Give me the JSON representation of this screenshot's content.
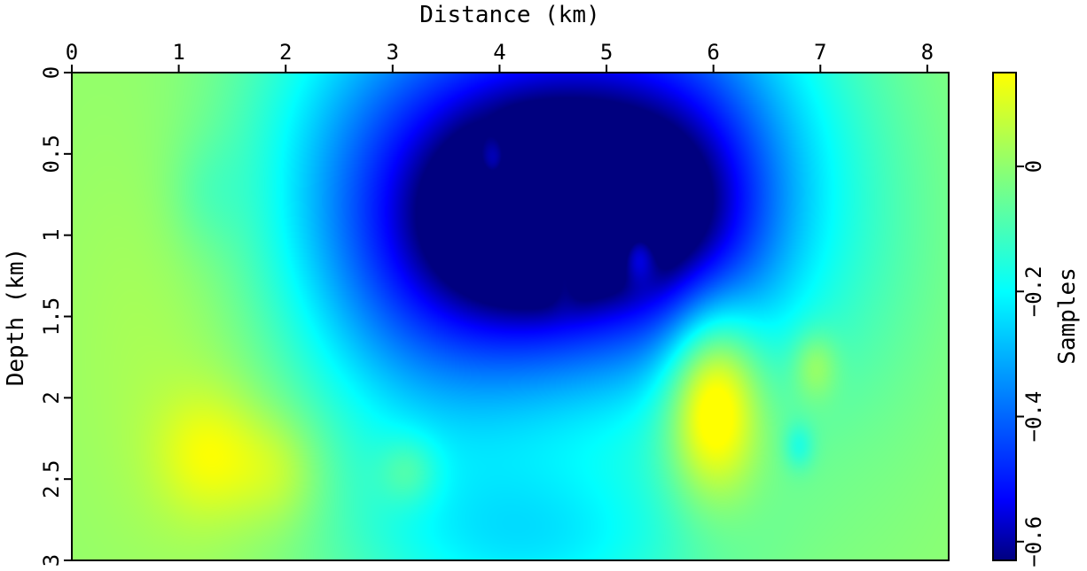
{
  "chart_data": {
    "type": "heatmap",
    "xlabel": "Distance (km)",
    "ylabel": "Depth (km)",
    "colorbar_label": "Samples",
    "xlim": [
      0,
      8.2
    ],
    "ylim": [
      0,
      3
    ],
    "x_axis_position": "top",
    "y_axis_direction": "downward",
    "x_ticks": [
      0,
      1,
      2,
      3,
      4,
      5,
      6,
      7,
      8
    ],
    "x_tick_labels": [
      "0",
      "1",
      "2",
      "3",
      "4",
      "5",
      "6",
      "7",
      "8"
    ],
    "y_ticks": [
      0,
      0.5,
      1,
      1.5,
      2,
      2.5,
      3
    ],
    "y_tick_labels": [
      "0",
      "0.5",
      "1",
      "1.5",
      "2",
      "2.5",
      "3"
    ],
    "colorbar_range": [
      -0.63,
      0.15
    ],
    "colorbar_ticks": [
      0,
      -0.2,
      -0.4,
      -0.6
    ],
    "colorbar_tick_labels": [
      "0",
      "−0.2",
      "−0.4",
      "−0.6"
    ],
    "colormap": [
      "#00007f",
      "#0000ff",
      "#00ffff",
      "#7fff7f",
      "#ffff00"
    ],
    "background_value": 0.0,
    "anomalies": [
      {
        "x": 1.1,
        "y": 1.2,
        "amp": 0.07,
        "sx": 0.8,
        "sy": 1.2
      },
      {
        "x": 1.3,
        "y": 2.35,
        "amp": 0.12,
        "sx": 0.35,
        "sy": 0.28
      },
      {
        "x": 1.95,
        "y": 2.45,
        "amp": 0.09,
        "sx": 0.3,
        "sy": 0.25
      },
      {
        "x": 3.6,
        "y": 0.4,
        "amp": -0.28,
        "sx": 1.4,
        "sy": 0.9
      },
      {
        "x": 5.6,
        "y": 0.4,
        "amp": -0.28,
        "sx": 1.1,
        "sy": 0.9
      },
      {
        "x": 4.4,
        "y": 1.0,
        "amp": -0.35,
        "sx": 1.5,
        "sy": 0.8
      },
      {
        "x": 4.3,
        "y": 2.9,
        "amp": -0.2,
        "sx": 1.2,
        "sy": 0.4
      },
      {
        "x": 3.2,
        "y": 1.6,
        "amp": -0.1,
        "sx": 0.8,
        "sy": 0.8
      },
      {
        "x": 4.3,
        "y": 0.95,
        "amp": -0.18,
        "sx": 0.7,
        "sy": 0.45
      },
      {
        "x": 5.8,
        "y": 0.95,
        "amp": -0.15,
        "sx": 0.55,
        "sy": 0.5
      },
      {
        "x": 3.95,
        "y": 0.55,
        "amp": 0.18,
        "sx": 0.12,
        "sy": 0.12
      },
      {
        "x": 4.6,
        "y": 1.15,
        "amp": 0.15,
        "sx": 0.1,
        "sy": 0.15
      },
      {
        "x": 5.3,
        "y": 1.12,
        "amp": 0.17,
        "sx": 0.12,
        "sy": 0.12
      },
      {
        "x": 4.9,
        "y": 0.72,
        "amp": 0.07,
        "sx": 0.12,
        "sy": 0.12
      },
      {
        "x": 6.0,
        "y": 2.0,
        "amp": 0.35,
        "sx": 0.3,
        "sy": 0.4
      },
      {
        "x": 6.95,
        "y": 1.8,
        "amp": 0.12,
        "sx": 0.15,
        "sy": 0.15
      },
      {
        "x": 6.8,
        "y": 2.3,
        "amp": -0.1,
        "sx": 0.1,
        "sy": 0.1
      },
      {
        "x": 3.15,
        "y": 2.45,
        "amp": 0.1,
        "sx": 0.2,
        "sy": 0.15
      },
      {
        "x": 7.5,
        "y": 1.5,
        "amp": -0.03,
        "sx": 0.6,
        "sy": 1.0
      },
      {
        "x": 1.25,
        "y": 0.75,
        "amp": -0.05,
        "sx": 0.25,
        "sy": 0.25
      }
    ]
  }
}
